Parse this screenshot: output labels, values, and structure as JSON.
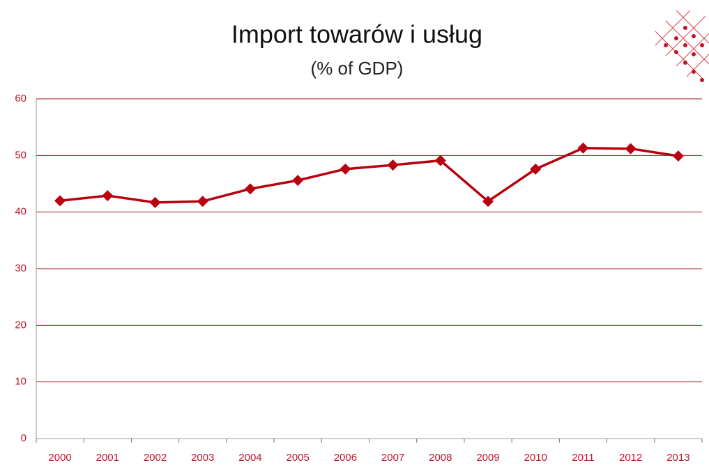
{
  "chart_data": {
    "type": "line",
    "title": "Import towarów i usług",
    "subtitle": "(% of GDP)",
    "categories": [
      "2000",
      "2001",
      "2002",
      "2003",
      "2004",
      "2005",
      "2006",
      "2007",
      "2008",
      "2009",
      "2010",
      "2011",
      "2012",
      "2013"
    ],
    "values": [
      42.0,
      42.9,
      41.7,
      41.9,
      44.1,
      45.6,
      47.6,
      48.3,
      49.1,
      41.9,
      47.6,
      51.3,
      51.2,
      49.9
    ],
    "color": "#b8000f",
    "ylim": [
      0,
      60
    ],
    "yticks": [
      0,
      10,
      20,
      30,
      40,
      50,
      60
    ],
    "grid": true
  }
}
